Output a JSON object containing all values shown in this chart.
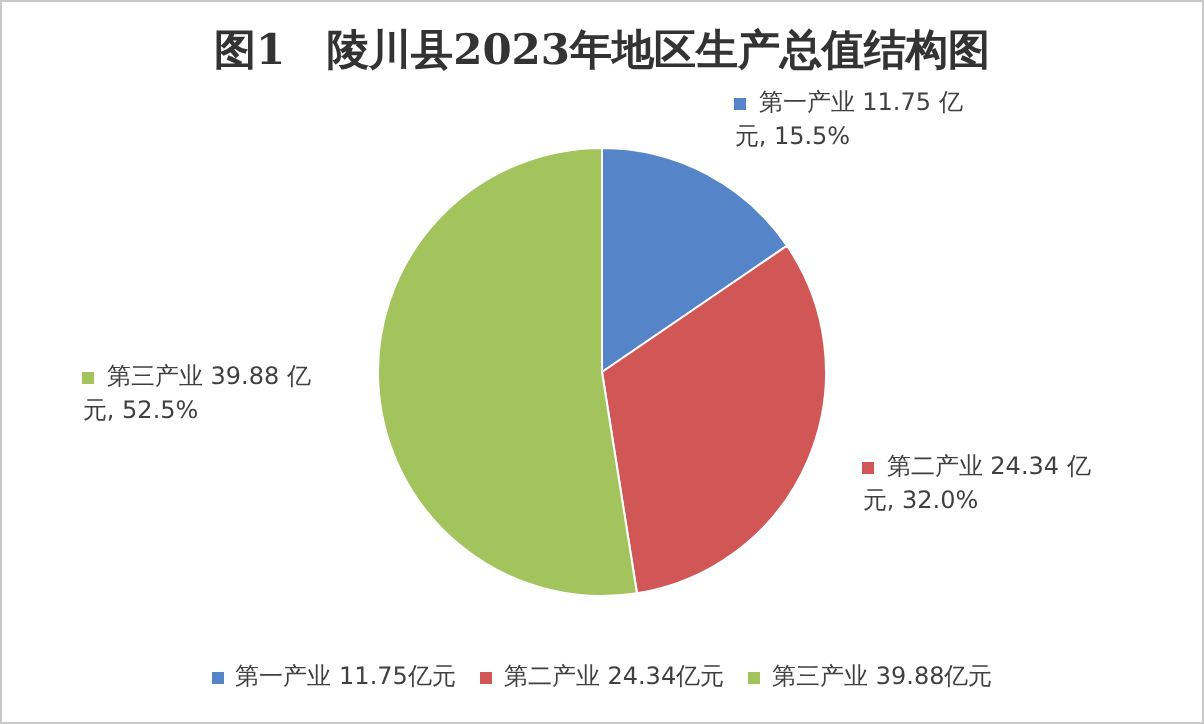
{
  "chart_data": {
    "type": "pie",
    "title": "图1　陵川县2023年地区生产总值结构图",
    "categories": [
      "第一产业 11.75亿元",
      "第二产业 24.34亿元",
      "第三产业 39.88亿元"
    ],
    "values": [
      11.75,
      24.34,
      39.88
    ],
    "colors": [
      "#5585c8",
      "#d05755",
      "#a3c45c"
    ],
    "value_labels": [
      "第一产业 11.75 亿元, 15.5%",
      "第二产业 24.34 亿元, 32.0%",
      "第三产业 39.88 亿元, 52.5%"
    ],
    "legend": "bottom"
  }
}
